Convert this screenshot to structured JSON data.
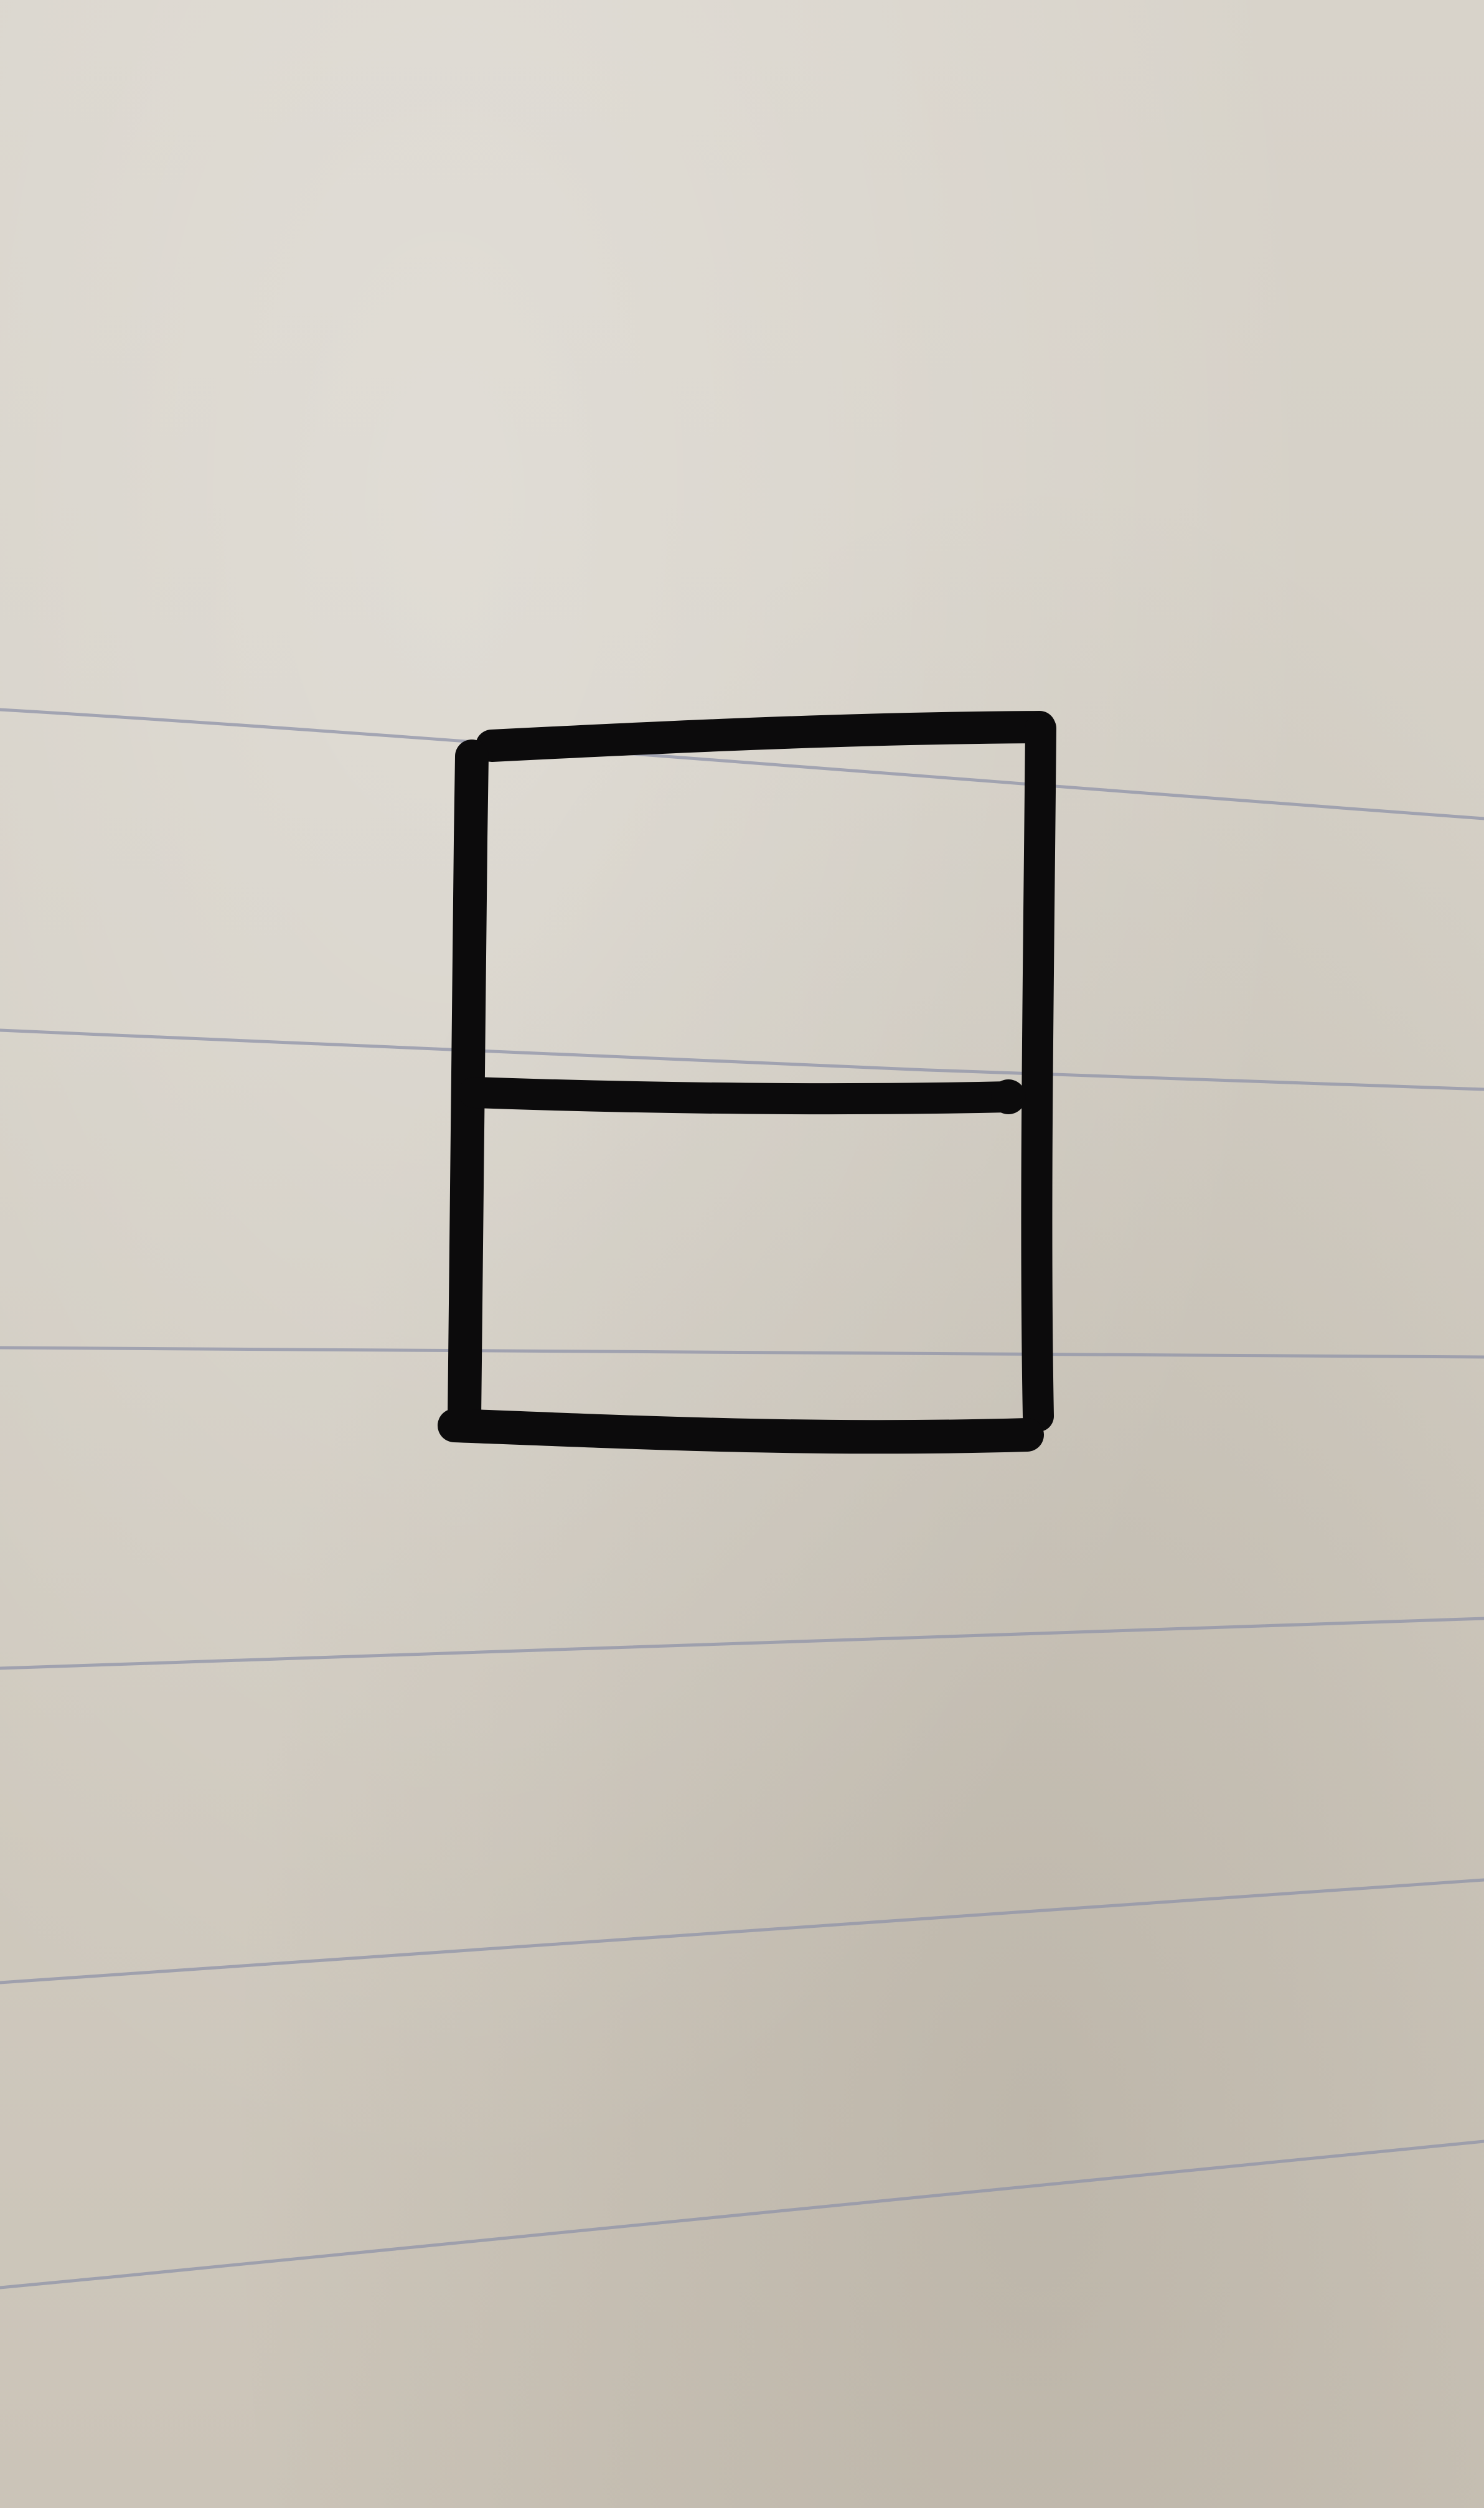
{
  "scene": {
    "subject": "hand-drawn-rectangle-divided-in-two",
    "background": "ruled-notebook-paper",
    "colors": {
      "paper": "#d4cfc5",
      "ruled_line": "#8f93a8",
      "ink": "#0c0b0c"
    }
  }
}
